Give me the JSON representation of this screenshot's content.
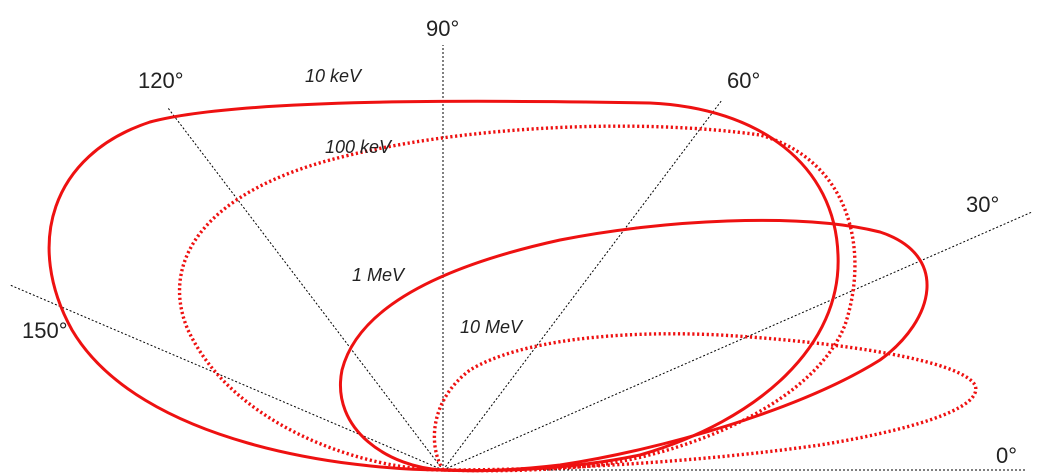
{
  "angle_labels": {
    "deg0": "0°",
    "deg30": "30°",
    "deg60": "60°",
    "deg90": "90°",
    "deg120": "120°",
    "deg150": "150°"
  },
  "curves": [
    {
      "label": "10 keV",
      "style": "solid",
      "color": "#ee1111"
    },
    {
      "label": "100 keV",
      "style": "dotted",
      "color": "#ee1111"
    },
    {
      "label": "1 MeV",
      "style": "solid",
      "color": "#ee1111"
    },
    {
      "label": "10 MeV",
      "style": "dotted",
      "color": "#ee1111"
    }
  ]
}
